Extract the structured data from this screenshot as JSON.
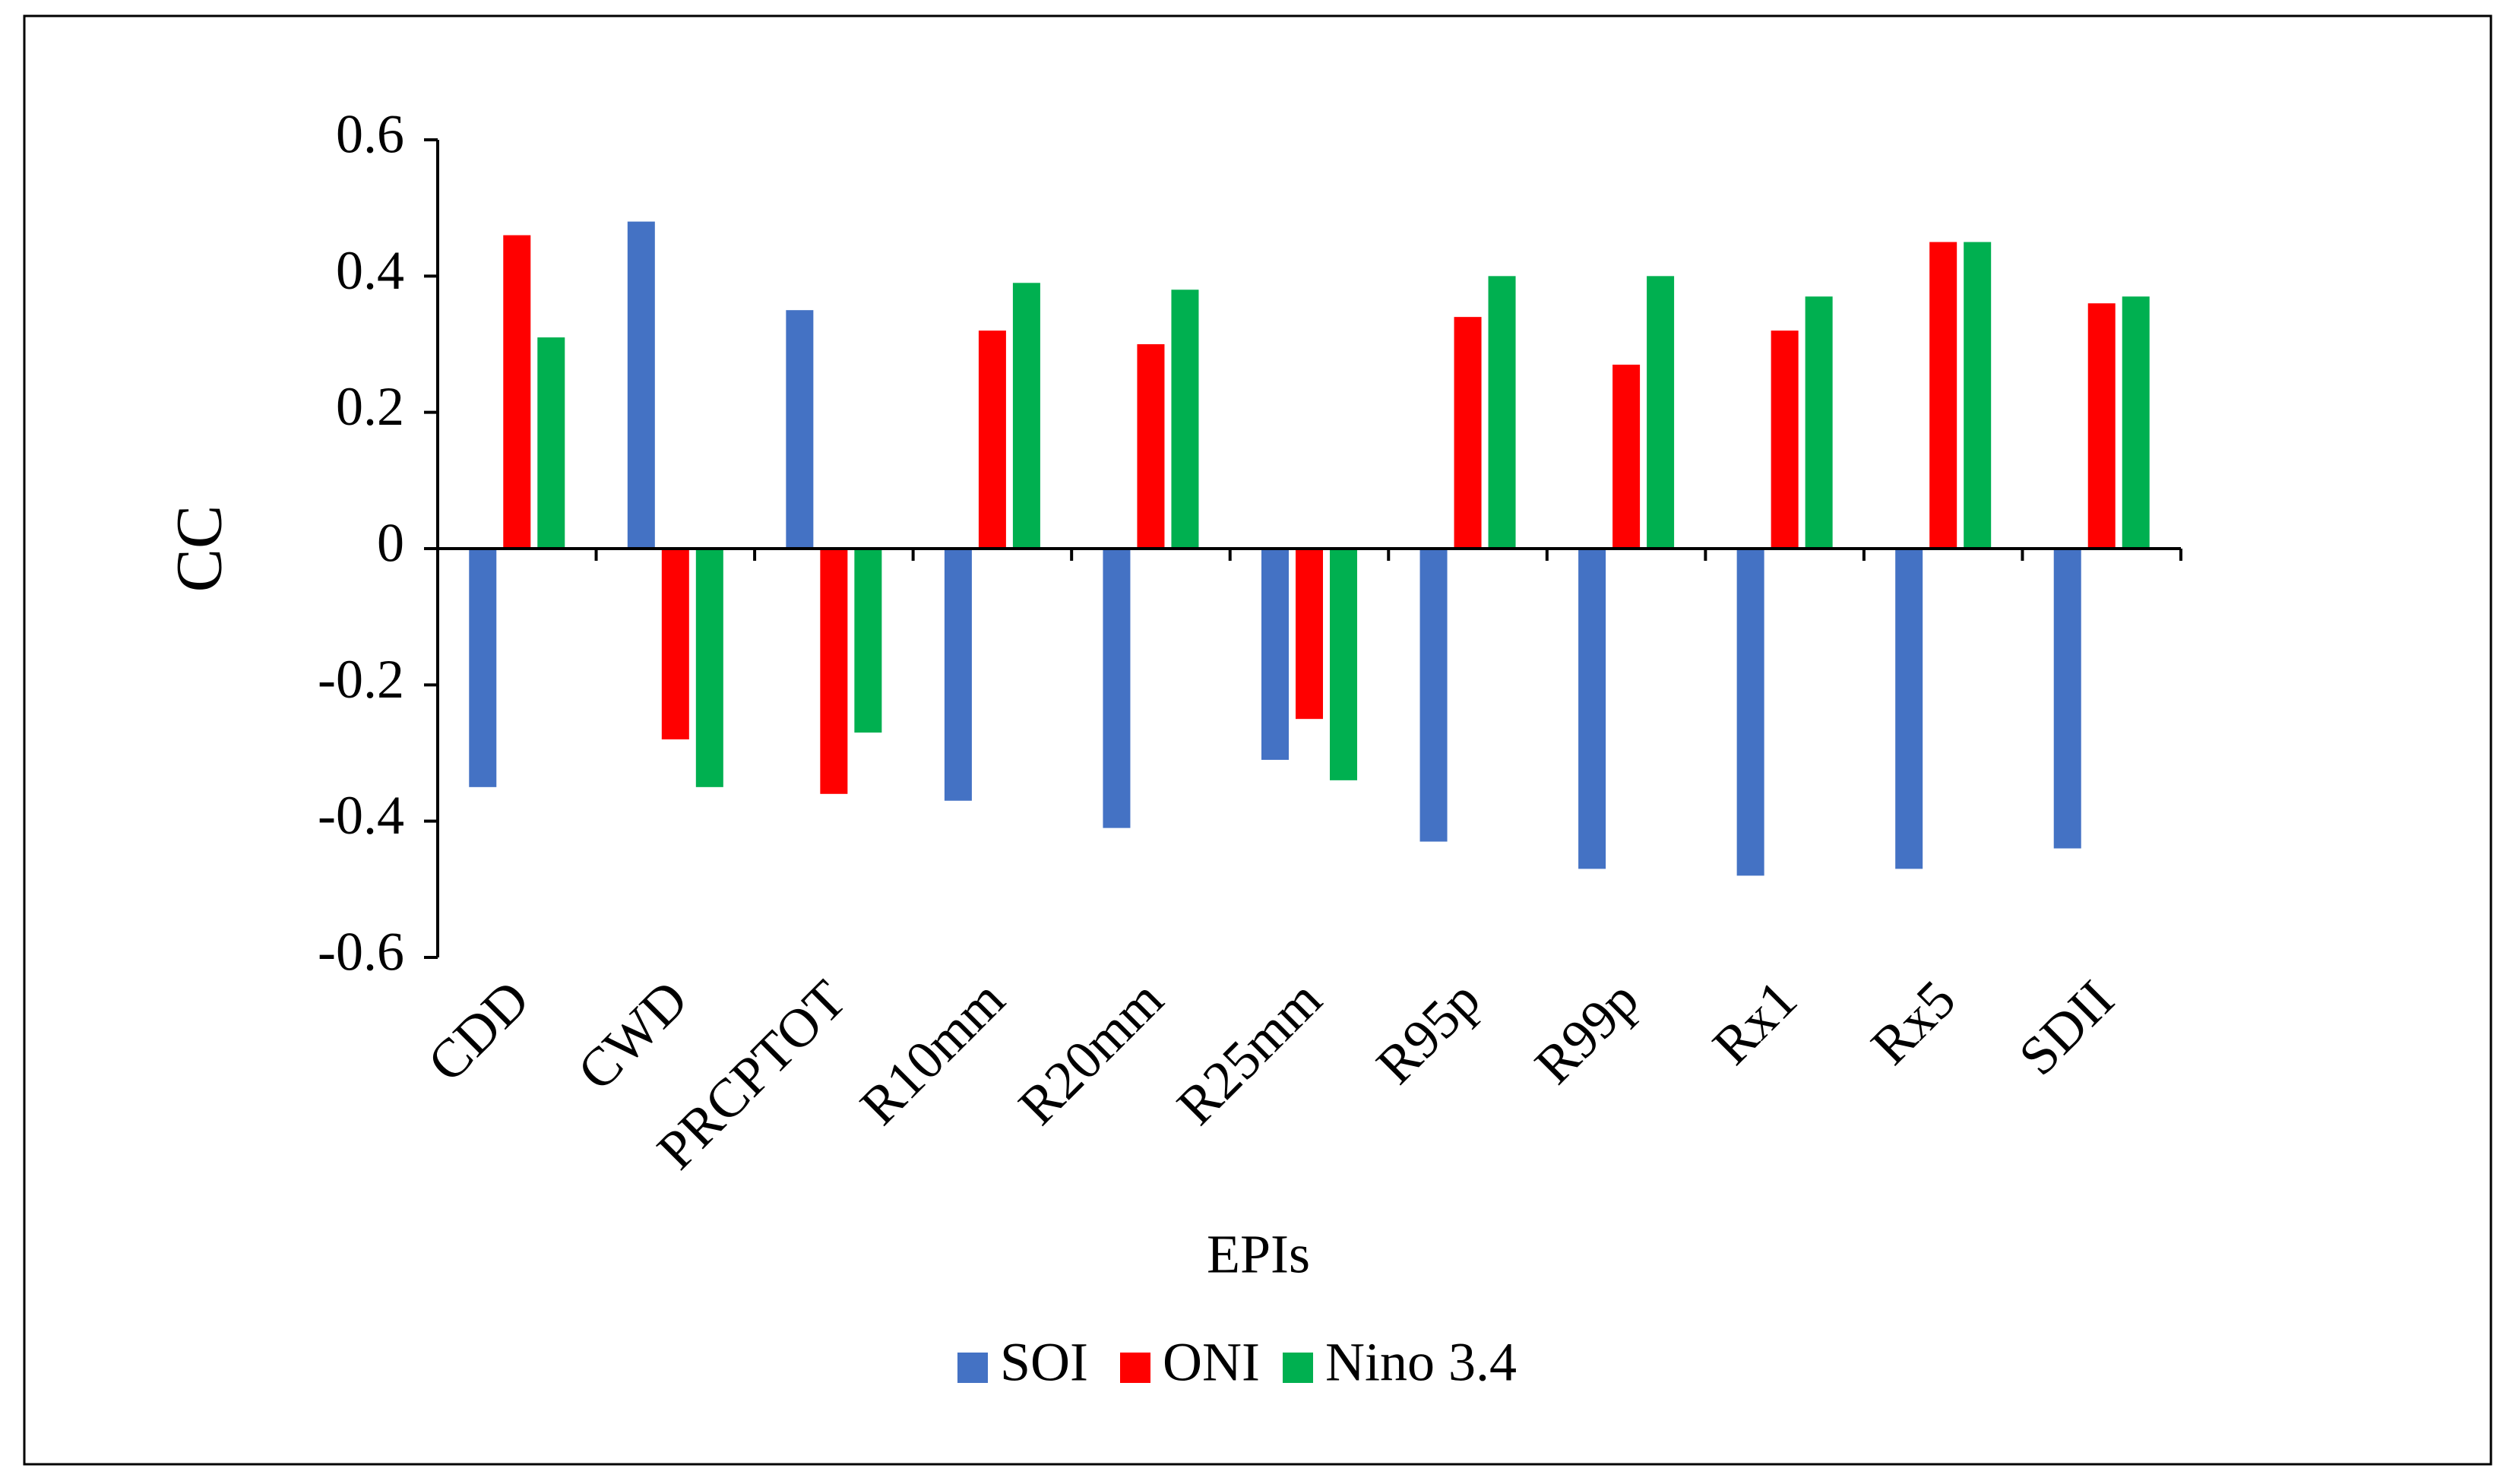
{
  "chart_data": {
    "type": "bar",
    "x_label": "EPIs",
    "y_label": "CC",
    "categories": [
      "CDD",
      "CWD",
      "PRCPTOT",
      "R10mm",
      "R20mm",
      "R25mm",
      "R95p",
      "R99p",
      "Rx1",
      "Rx5",
      "SDII"
    ],
    "series": [
      {
        "name": "SOI",
        "color": "#4472c4",
        "values": [
          -0.35,
          0.48,
          0.35,
          -0.37,
          -0.41,
          -0.31,
          -0.43,
          -0.47,
          -0.48,
          -0.47,
          -0.44
        ]
      },
      {
        "name": "ONI",
        "color": "#ff0000",
        "values": [
          0.46,
          -0.28,
          -0.36,
          0.32,
          0.3,
          -0.25,
          0.34,
          0.27,
          0.32,
          0.45,
          0.36
        ]
      },
      {
        "name": "Nino 3.4",
        "color": "#00b050",
        "values": [
          0.31,
          -0.35,
          -0.27,
          0.39,
          0.38,
          -0.34,
          0.4,
          0.4,
          0.37,
          0.45,
          0.37
        ]
      }
    ],
    "ylim": [
      -0.6,
      0.6
    ],
    "yticks": [
      -0.6,
      -0.4,
      -0.2,
      0,
      0.2,
      0.4,
      0.6
    ],
    "legend": "bottom"
  }
}
